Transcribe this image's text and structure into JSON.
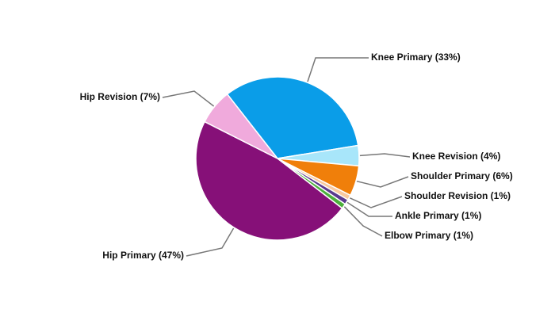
{
  "chart_data": {
    "type": "pie",
    "values": [
      33,
      4,
      6,
      1,
      1,
      1,
      47,
      7
    ],
    "value_labels": [
      "Knee Primary (33%)",
      "Knee Revision (4%)",
      "Shoulder Primary (6%)",
      "Shoulder Revision (1%)",
      "Ankle Primary (1%)",
      "Elbow Primary (1%)",
      "Hip Primary (47%)",
      "Hip Revision (7%)"
    ],
    "colors": [
      "#0a9de8",
      "#a8e6fa",
      "#f07f0a",
      "#f8c9a0",
      "#5b3a8e",
      "#4caf3c",
      "#861078",
      "#f0aadc"
    ]
  }
}
